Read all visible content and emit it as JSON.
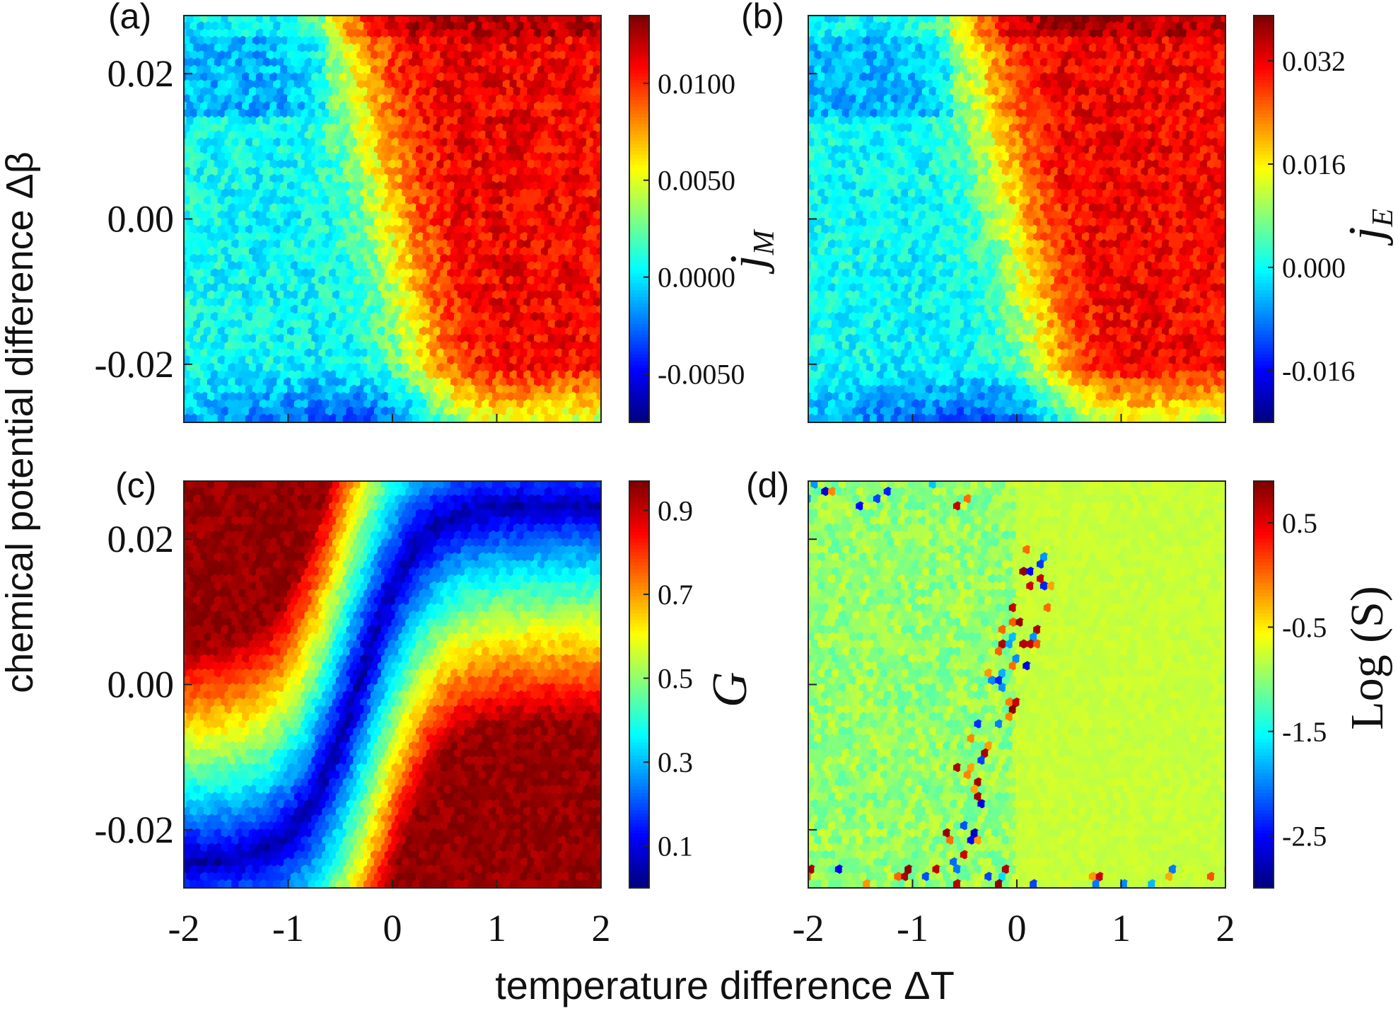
{
  "figure": {
    "xlabel": "temperature difference ΔT",
    "ylabel": "chemical potential difference Δβ"
  },
  "chart_data": [
    {
      "type": "heatmap",
      "panel_label": "(a)",
      "colorbar_label": "j_M",
      "colorbar_ticks": [
        "0.0100",
        "0.0050",
        "0.0000",
        "-0.0050"
      ],
      "colorbar_tick_values": [
        0.01,
        0.005,
        0.0,
        -0.005
      ],
      "colorbar_range": [
        -0.0075,
        0.0135
      ],
      "xlim": [
        -2,
        2
      ],
      "ylim": [
        -0.028,
        0.028
      ],
      "x_ticks": [
        -2,
        -1,
        0,
        1,
        2
      ],
      "y_ticks": [
        "0.02",
        "0.00",
        "-0.02"
      ],
      "y_tick_values": [
        0.02,
        0.0,
        -0.02
      ],
      "pattern": "jflux"
    },
    {
      "type": "heatmap",
      "panel_label": "(b)",
      "colorbar_label": "j_E",
      "colorbar_ticks": [
        "0.032",
        "0.016",
        "0.000",
        "-0.016"
      ],
      "colorbar_tick_values": [
        0.032,
        0.016,
        0.0,
        -0.016
      ],
      "colorbar_range": [
        -0.024,
        0.039
      ],
      "xlim": [
        -2,
        2
      ],
      "ylim": [
        -0.028,
        0.028
      ],
      "x_ticks": [
        -2,
        -1,
        0,
        1,
        2
      ],
      "y_tick_values": [
        0.02,
        0.0,
        -0.02
      ],
      "pattern": "jflux"
    },
    {
      "type": "heatmap",
      "panel_label": "(c)",
      "colorbar_label": "G",
      "colorbar_ticks": [
        "0.9",
        "0.7",
        "0.5",
        "0.3",
        "0.1"
      ],
      "colorbar_tick_values": [
        0.9,
        0.7,
        0.5,
        0.3,
        0.1
      ],
      "colorbar_range": [
        0.0,
        0.97
      ],
      "xlim": [
        -2,
        2
      ],
      "ylim": [
        -0.028,
        0.028
      ],
      "x_ticks": [
        "-2",
        "-1",
        "0",
        "1",
        "2"
      ],
      "x_tick_values": [
        -2,
        -1,
        0,
        1,
        2
      ],
      "y_ticks": [
        "0.02",
        "0.00",
        "-0.02"
      ],
      "y_tick_values": [
        0.02,
        0.0,
        -0.02
      ],
      "pattern": "valley"
    },
    {
      "type": "heatmap",
      "panel_label": "(d)",
      "colorbar_label": "Log (S)",
      "colorbar_ticks": [
        "0.5",
        "-0.5",
        "-1.5",
        "-2.5"
      ],
      "colorbar_tick_values": [
        0.5,
        -0.5,
        -1.5,
        -2.5
      ],
      "colorbar_range": [
        -3.0,
        0.9
      ],
      "xlim": [
        -2,
        2
      ],
      "ylim": [
        -0.028,
        0.028
      ],
      "x_ticks": [
        "-2",
        "-1",
        "0",
        "1",
        "2"
      ],
      "x_tick_values": [
        -2,
        -1,
        0,
        1,
        2
      ],
      "y_tick_values": [
        0.02,
        0.0,
        -0.02
      ],
      "pattern": "entropy"
    }
  ]
}
